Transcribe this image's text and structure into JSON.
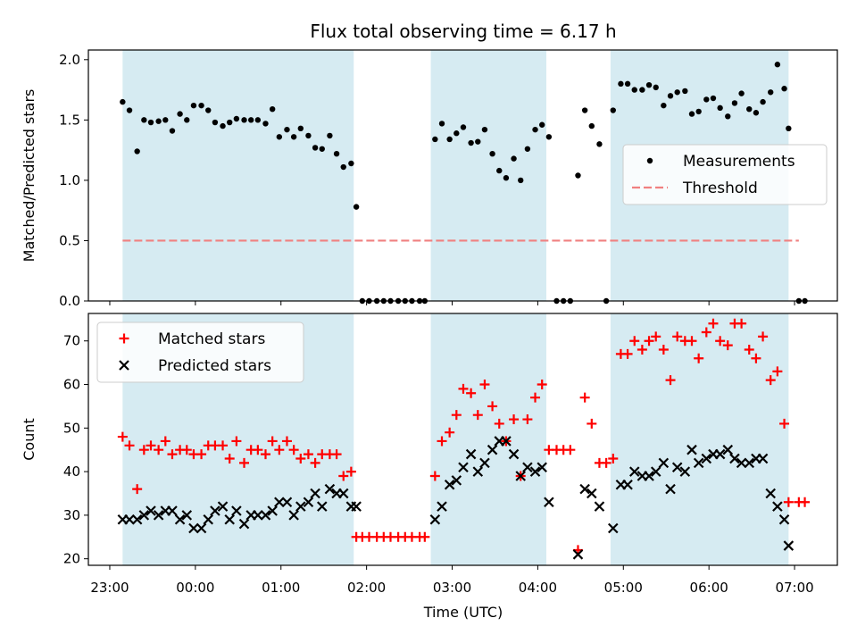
{
  "chart_data": {
    "title": "Flux total observing time = 6.17 h",
    "xlabel": "Time (UTC)",
    "x_tick_labels": [
      "23:00",
      "00:00",
      "01:00",
      "02:00",
      "03:00",
      "04:00",
      "05:00",
      "06:00",
      "07:00"
    ],
    "x_ticks_hours": [
      23,
      24,
      25,
      26,
      27,
      28,
      29,
      30,
      31
    ],
    "x_range_hours": [
      22.75,
      31.5
    ],
    "shaded_intervals_hours": [
      [
        23.15,
        25.85
      ],
      [
        26.75,
        28.1
      ],
      [
        28.85,
        30.93
      ]
    ],
    "shade_color": "#add8e6",
    "panels": [
      {
        "type": "scatter",
        "ylabel": "Matched/Predicted stars",
        "ylim": [
          0.0,
          2.08
        ],
        "y_ticks": [
          "0.0",
          "0.5",
          "1.0",
          "1.5",
          "2.0"
        ],
        "legend": {
          "position": "center-right",
          "entries": [
            "Measurements",
            "Threshold"
          ]
        },
        "threshold": {
          "name": "Threshold",
          "y": 0.5,
          "x_from": 23.15,
          "x_to": 31.05,
          "color": "#f08080"
        },
        "measurements": {
          "name": "Measurements",
          "color": "#000000",
          "x": [
            23.15,
            23.23,
            23.32,
            23.4,
            23.48,
            23.57,
            23.65,
            23.73,
            23.82,
            23.9,
            23.98,
            24.07,
            24.15,
            24.23,
            24.32,
            24.4,
            24.48,
            24.57,
            24.65,
            24.73,
            24.82,
            24.9,
            24.98,
            25.07,
            25.15,
            25.23,
            25.32,
            25.4,
            25.48,
            25.57,
            25.65,
            25.73,
            25.82,
            25.88,
            25.95,
            26.03,
            26.12,
            26.2,
            26.28,
            26.37,
            26.45,
            26.53,
            26.62,
            26.68,
            26.8,
            26.88,
            26.97,
            27.05,
            27.13,
            27.22,
            27.3,
            27.38,
            27.47,
            27.55,
            27.63,
            27.72,
            27.8,
            27.88,
            27.97,
            28.05,
            28.13,
            28.22,
            28.3,
            28.38,
            28.47,
            28.55,
            28.63,
            28.72,
            28.8,
            28.88,
            28.97,
            29.05,
            29.13,
            29.22,
            29.3,
            29.38,
            29.47,
            29.55,
            29.63,
            29.72,
            29.8,
            29.88,
            29.97,
            30.05,
            30.13,
            30.22,
            30.3,
            30.38,
            30.47,
            30.55,
            30.63,
            30.72,
            30.8,
            30.88,
            30.93,
            31.05,
            31.12
          ],
          "y": [
            1.65,
            1.58,
            1.24,
            1.5,
            1.48,
            1.49,
            1.5,
            1.41,
            1.55,
            1.5,
            1.62,
            1.62,
            1.58,
            1.48,
            1.45,
            1.48,
            1.51,
            1.5,
            1.5,
            1.5,
            1.47,
            1.59,
            1.36,
            1.42,
            1.36,
            1.43,
            1.37,
            1.27,
            1.26,
            1.37,
            1.22,
            1.11,
            1.14,
            0.78,
            0.0,
            0.0,
            0.0,
            0.0,
            0.0,
            0.0,
            0.0,
            0.0,
            0.0,
            0.0,
            1.34,
            1.47,
            1.34,
            1.39,
            1.44,
            1.31,
            1.32,
            1.42,
            1.22,
            1.08,
            1.02,
            1.18,
            1.0,
            1.26,
            1.42,
            1.46,
            1.36,
            0.0,
            0.0,
            0.0,
            1.04,
            1.58,
            1.45,
            1.3,
            0.0,
            1.58,
            1.8,
            1.8,
            1.75,
            1.75,
            1.79,
            1.77,
            1.62,
            1.7,
            1.73,
            1.74,
            1.55,
            1.57,
            1.67,
            1.68,
            1.6,
            1.53,
            1.64,
            1.72,
            1.59,
            1.56,
            1.65,
            1.73,
            1.96,
            1.76,
            1.43,
            0.0,
            0.0
          ]
        }
      },
      {
        "type": "scatter",
        "ylabel": "Count",
        "ylim": [
          18.5,
          76.3
        ],
        "y_ticks": [
          "20",
          "30",
          "40",
          "50",
          "60",
          "70"
        ],
        "legend": {
          "position": "top-left",
          "entries": [
            "Matched stars",
            "Predicted stars"
          ]
        },
        "series": [
          {
            "name": "Matched stars",
            "marker": "plus",
            "color": "#ff0000",
            "x": [
              23.15,
              23.23,
              23.32,
              23.4,
              23.48,
              23.57,
              23.65,
              23.73,
              23.82,
              23.9,
              23.98,
              24.07,
              24.15,
              24.23,
              24.32,
              24.4,
              24.48,
              24.57,
              24.65,
              24.73,
              24.82,
              24.9,
              24.98,
              25.07,
              25.15,
              25.23,
              25.32,
              25.4,
              25.48,
              25.57,
              25.65,
              25.73,
              25.82,
              25.88,
              25.95,
              26.03,
              26.12,
              26.2,
              26.28,
              26.37,
              26.45,
              26.53,
              26.62,
              26.68,
              26.8,
              26.88,
              26.97,
              27.05,
              27.13,
              27.22,
              27.3,
              27.38,
              27.47,
              27.55,
              27.63,
              27.72,
              27.8,
              27.88,
              27.97,
              28.05,
              28.13,
              28.22,
              28.3,
              28.38,
              28.47,
              28.55,
              28.63,
              28.72,
              28.8,
              28.88,
              28.97,
              29.05,
              29.13,
              29.22,
              29.3,
              29.38,
              29.47,
              29.55,
              29.63,
              29.72,
              29.8,
              29.88,
              29.97,
              30.05,
              30.13,
              30.22,
              30.3,
              30.38,
              30.47,
              30.55,
              30.63,
              30.72,
              30.8,
              30.88,
              30.93,
              31.05,
              31.12
            ],
            "y": [
              48,
              46,
              36,
              45,
              46,
              45,
              47,
              44,
              45,
              45,
              44,
              44,
              46,
              46,
              46,
              43,
              47,
              42,
              45,
              45,
              44,
              47,
              45,
              47,
              45,
              43,
              44,
              42,
              44,
              44,
              44,
              39,
              40,
              25,
              25,
              25,
              25,
              25,
              25,
              25,
              25,
              25,
              25,
              25,
              39,
              47,
              49,
              53,
              59,
              58,
              53,
              60,
              55,
              51,
              47,
              52,
              39,
              52,
              57,
              60,
              45,
              45,
              45,
              45,
              22,
              57,
              51,
              42,
              42,
              43,
              67,
              67,
              70,
              68,
              70,
              71,
              68,
              61,
              71,
              70,
              70,
              66,
              72,
              74,
              70,
              69,
              74,
              74,
              68,
              66,
              71,
              61,
              63,
              51,
              33,
              33,
              33
            ]
          },
          {
            "name": "Predicted stars",
            "marker": "x",
            "color": "#000000",
            "x": [
              23.15,
              23.23,
              23.32,
              23.4,
              23.48,
              23.57,
              23.65,
              23.73,
              23.82,
              23.9,
              23.98,
              24.07,
              24.15,
              24.23,
              24.32,
              24.4,
              24.48,
              24.57,
              24.65,
              24.73,
              24.82,
              24.9,
              24.98,
              25.07,
              25.15,
              25.23,
              25.32,
              25.4,
              25.48,
              25.57,
              25.65,
              25.73,
              25.82,
              25.88,
              26.8,
              26.88,
              26.97,
              27.05,
              27.13,
              27.22,
              27.3,
              27.38,
              27.47,
              27.55,
              27.63,
              27.72,
              27.8,
              27.88,
              27.97,
              28.05,
              28.13,
              28.47,
              28.55,
              28.63,
              28.72,
              28.88,
              28.97,
              29.05,
              29.13,
              29.22,
              29.3,
              29.38,
              29.47,
              29.55,
              29.63,
              29.72,
              29.8,
              29.88,
              29.97,
              30.05,
              30.13,
              30.22,
              30.3,
              30.38,
              30.47,
              30.55,
              30.63,
              30.72,
              30.8,
              30.88,
              30.93
            ],
            "y": [
              29,
              29,
              29,
              30,
              31,
              30,
              31,
              31,
              29,
              30,
              27,
              27,
              29,
              31,
              32,
              29,
              31,
              28,
              30,
              30,
              30,
              31,
              33,
              33,
              30,
              32,
              33,
              35,
              32,
              36,
              35,
              35,
              32,
              32,
              29,
              32,
              37,
              38,
              41,
              44,
              40,
              42,
              45,
              47,
              47,
              44,
              39,
              41,
              40,
              41,
              33,
              21,
              36,
              35,
              32,
              27,
              37,
              37,
              40,
              39,
              39,
              40,
              42,
              36,
              41,
              40,
              45,
              42,
              43,
              44,
              44,
              45,
              43,
              42,
              42,
              43,
              43,
              35,
              32,
              29,
              23
            ]
          }
        ]
      }
    ]
  }
}
